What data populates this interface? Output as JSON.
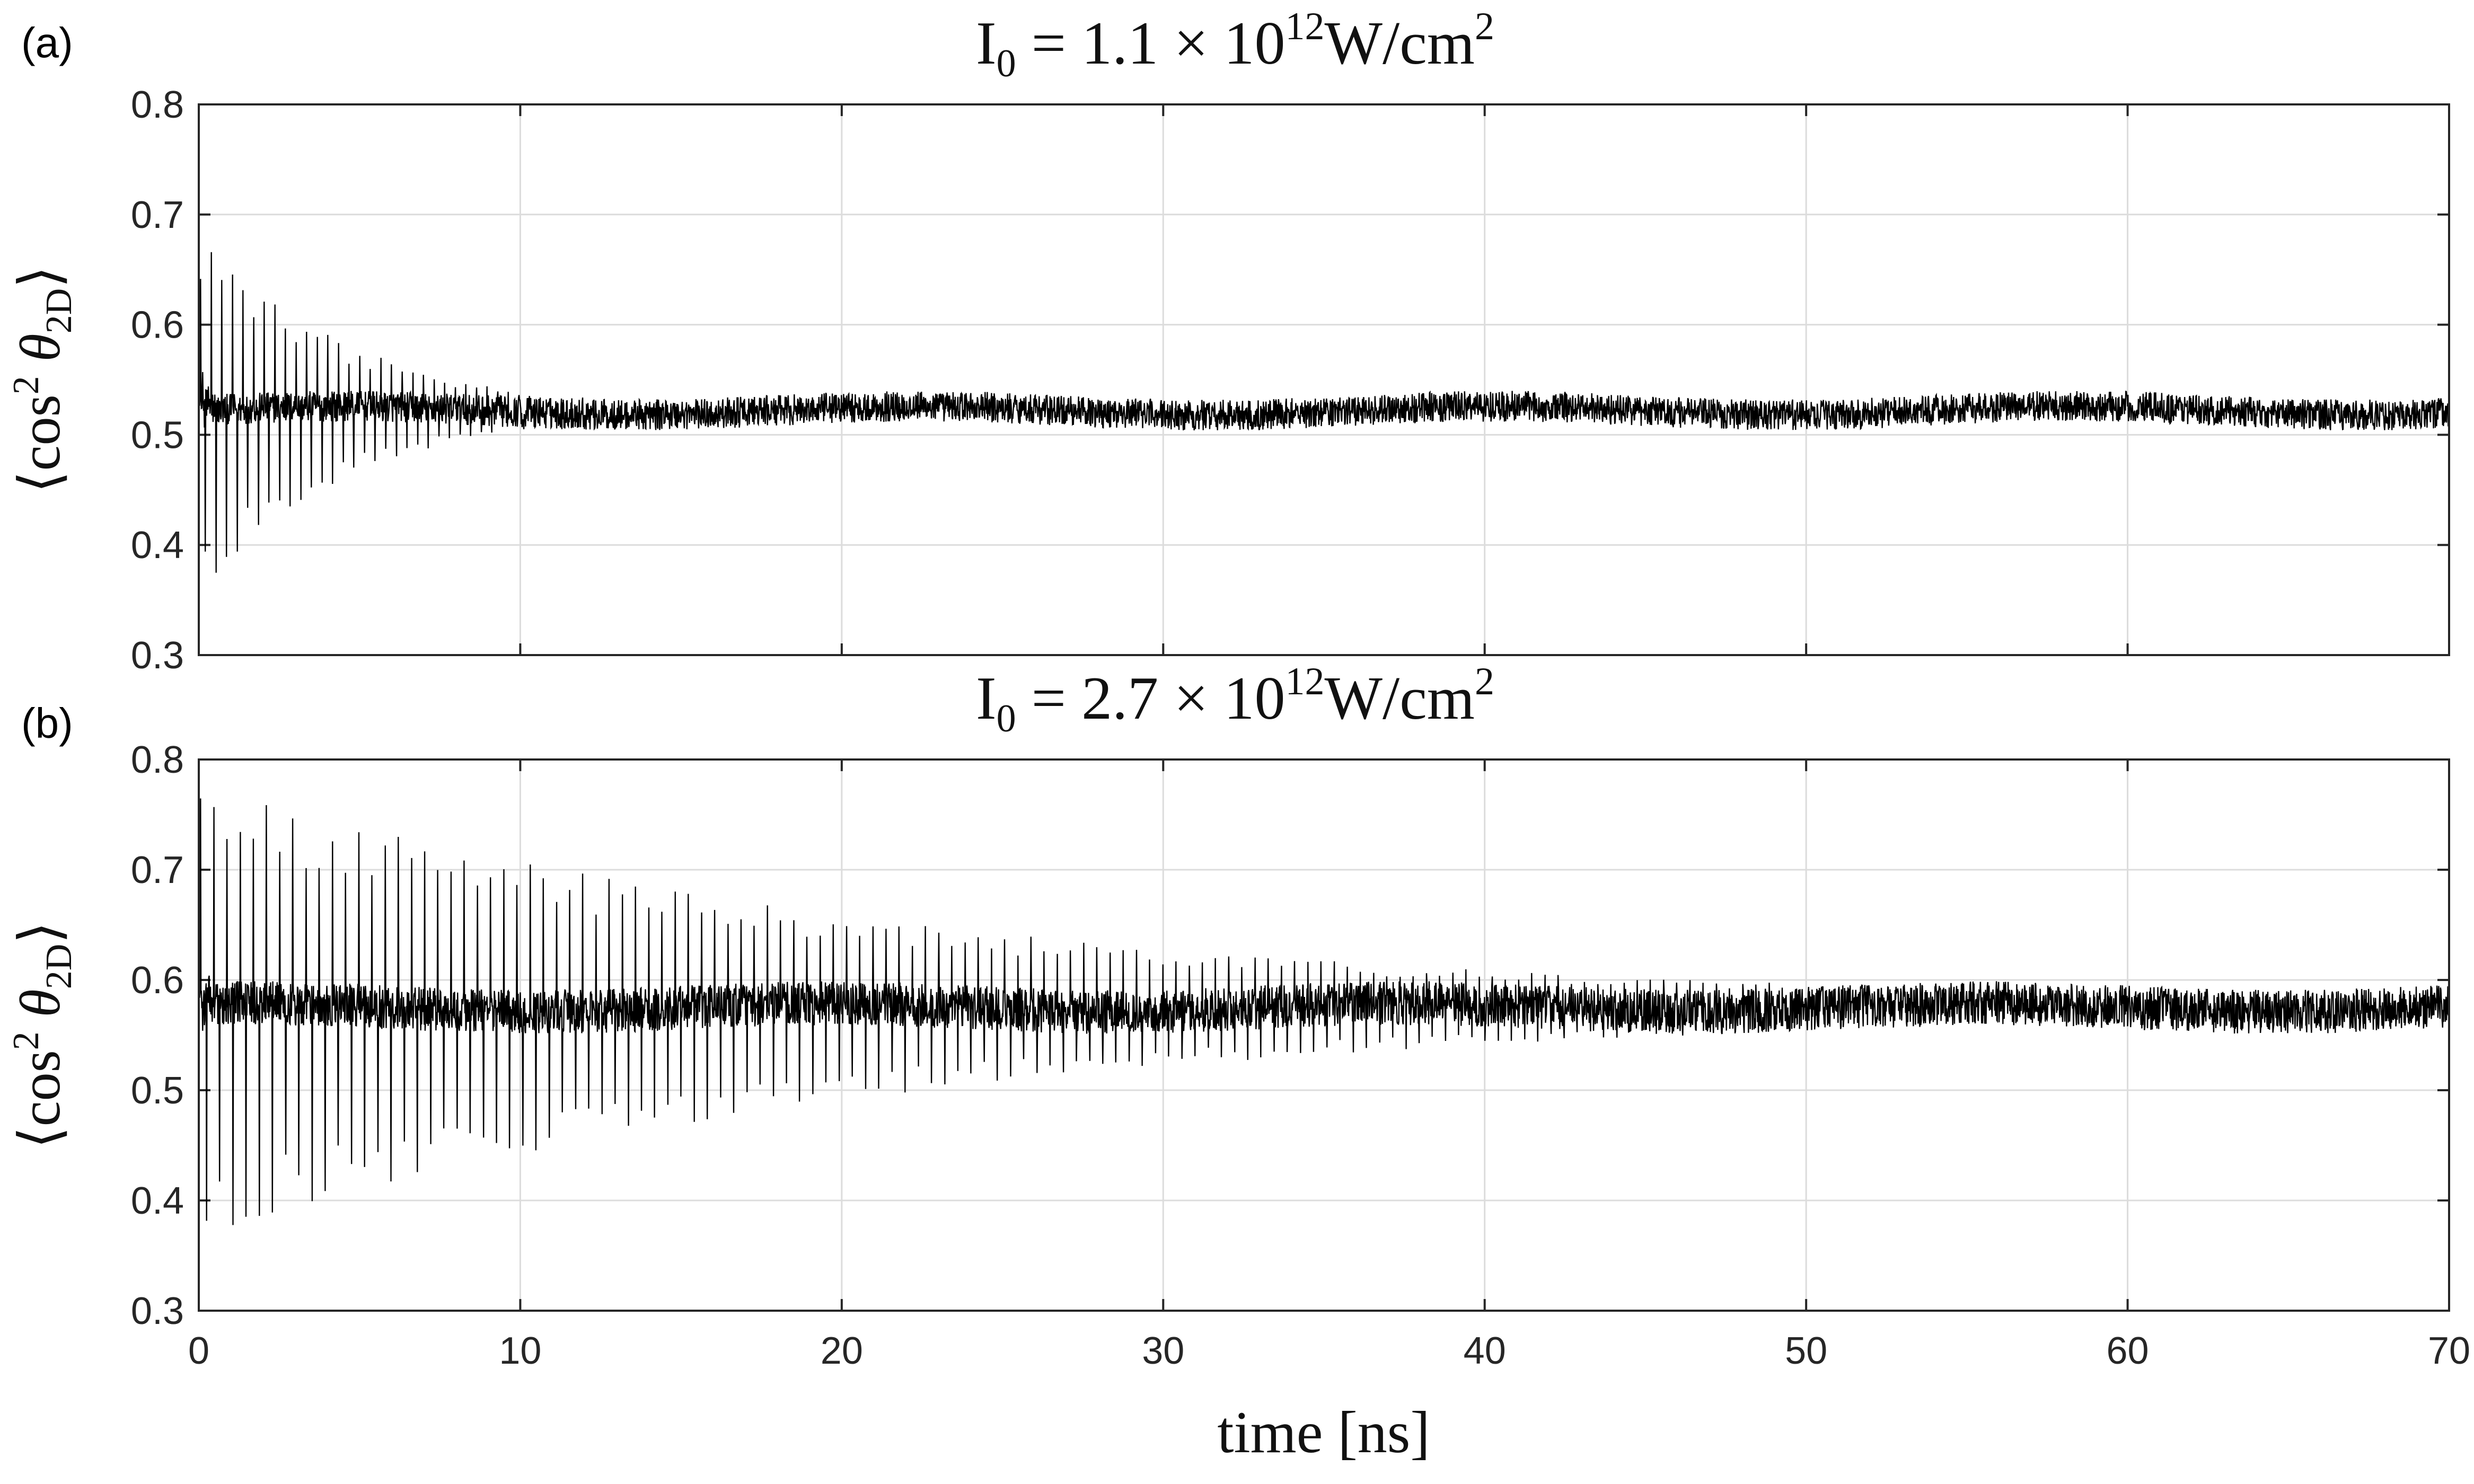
{
  "chart_data": [
    {
      "type": "line",
      "panel_label": "(a)",
      "title": {
        "base": "I",
        "sub": "0",
        "mid": " = 1.1 × 10",
        "sup": "12",
        "end": "W/cm",
        "sup2": "2"
      },
      "ylabel": {
        "open": "⟨",
        "fn": "cos",
        "sup": "2",
        "var": " θ",
        "sub": "2D",
        "close": "⟩"
      },
      "xlim": [
        0,
        70
      ],
      "ylim": [
        0.3,
        0.8
      ],
      "xticks": [
        "0",
        "10",
        "20",
        "30",
        "40",
        "50",
        "60",
        "70"
      ],
      "yticks": [
        "0.3",
        "0.4",
        "0.5",
        "0.6",
        "0.7",
        "0.8"
      ],
      "x_tick_labels_shown": false,
      "grid": true,
      "series": [
        {
          "values_description": "rapidly oscillating signal around baseline with revival spikes",
          "baseline": 0.522,
          "noise_amplitude": 0.014,
          "revival_period": 0.33,
          "revival_amplitude_start": 0.17,
          "revival_decay_ns": 4.5,
          "envelope_points": [
            [
              0,
              0.52
            ],
            [
              1,
              0.52
            ],
            [
              5,
              0.522
            ],
            [
              10,
              0.522
            ],
            [
              20,
              0.523
            ],
            [
              30,
              0.522
            ],
            [
              40,
              0.522
            ],
            [
              50,
              0.523
            ],
            [
              60,
              0.521
            ],
            [
              70,
              0.522
            ]
          ]
        }
      ]
    },
    {
      "type": "line",
      "panel_label": "(b)",
      "title": {
        "base": "I",
        "sub": "0",
        "mid": " = 2.7 × 10",
        "sup": "12",
        "end": "W/cm",
        "sup2": "2"
      },
      "ylabel": {
        "open": "⟨",
        "fn": "cos",
        "sup": "2",
        "var": " θ",
        "sub": "2D",
        "close": "⟩"
      },
      "xlabel": {
        "text": "time [ns]"
      },
      "xlim": [
        0,
        70
      ],
      "ylim": [
        0.3,
        0.8
      ],
      "xticks": [
        "0",
        "10",
        "20",
        "30",
        "40",
        "50",
        "60",
        "70"
      ],
      "yticks": [
        "0.3",
        "0.4",
        "0.5",
        "0.6",
        "0.7",
        "0.8"
      ],
      "x_tick_labels_shown": true,
      "grid": true,
      "series": [
        {
          "values_description": "rapidly oscillating signal around baseline with strong revival spikes decaying over time",
          "baseline": 0.575,
          "noise_amplitude": 0.02,
          "revival_period": 0.41,
          "revival_amplitude_start": 0.21,
          "revival_decay_ns": 22,
          "envelope_points": [
            [
              0,
              0.58
            ],
            [
              5,
              0.575
            ],
            [
              10,
              0.575
            ],
            [
              20,
              0.577
            ],
            [
              30,
              0.575
            ],
            [
              40,
              0.575
            ],
            [
              50,
              0.574
            ],
            [
              60,
              0.574
            ],
            [
              70,
              0.575
            ]
          ]
        }
      ]
    }
  ]
}
